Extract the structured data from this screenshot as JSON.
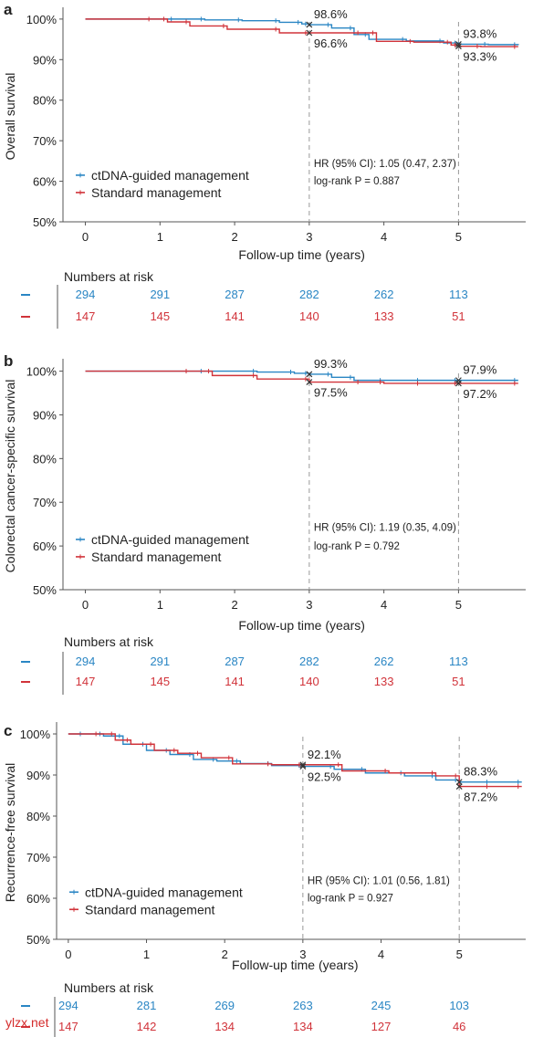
{
  "colors": {
    "ctdna": "#2a86c4",
    "standard": "#d1333a",
    "axis": "#555555",
    "annotation": "#7a7a7a",
    "text": "#222222"
  },
  "watermark": "ylzx.net",
  "chart_data": [
    {
      "panel_label": "a",
      "type": "line",
      "ylabel": "Overall survival",
      "xlabel": "Follow-up time (years)",
      "xlim": [
        -0.3,
        5.9
      ],
      "ylim": [
        50,
        102
      ],
      "xticks": [
        "0",
        "1",
        "2",
        "3",
        "4",
        "5"
      ],
      "yticks": [
        "100%",
        "90%",
        "80%",
        "70%",
        "60%",
        "50%"
      ],
      "legend_placement": "lower-left",
      "series": [
        {
          "name": "ctDNA-guided management",
          "color_key": "ctdna",
          "x": [
            0,
            1.2,
            1.6,
            2.1,
            2.6,
            2.9,
            3.0,
            3.3,
            3.6,
            3.8,
            4.3,
            4.8,
            5.0,
            5.4,
            5.8
          ],
          "y": [
            100,
            100,
            99.8,
            99.6,
            99.2,
            98.8,
            98.6,
            97.8,
            96.2,
            95.0,
            94.6,
            94.1,
            93.8,
            93.7,
            93.6
          ]
        },
        {
          "name": "Standard management",
          "color_key": "standard",
          "x": [
            0,
            0.9,
            1.1,
            1.4,
            1.9,
            2.6,
            3.0,
            3.7,
            3.9,
            4.4,
            4.9,
            5.0,
            5.3,
            5.8
          ],
          "y": [
            100,
            100,
            99.3,
            98.3,
            97.5,
            96.6,
            96.6,
            96.6,
            94.5,
            94.3,
            93.6,
            93.3,
            93.2,
            93.2
          ]
        }
      ],
      "annotations": [
        {
          "x": 3,
          "top": "98.6%",
          "bottom": "96.6%"
        },
        {
          "x": 5,
          "top": "93.8%",
          "bottom": "93.3%"
        }
      ],
      "stats": [
        "HR (95% CI): 1.05 (0.47, 2.37)",
        "log-rank P = 0.887"
      ],
      "risk_title": "Numbers at risk",
      "risk_x": [
        0,
        1,
        2,
        3,
        4,
        5
      ],
      "risk": {
        "ctdna": [
          "294",
          "291",
          "287",
          "282",
          "262",
          "113"
        ],
        "standard": [
          "147",
          "145",
          "141",
          "140",
          "133",
          "51"
        ]
      }
    },
    {
      "panel_label": "b",
      "type": "line",
      "ylabel": "Colorectal cancer-specific survival",
      "xlabel": "Follow-up time (years)",
      "xlim": [
        -0.3,
        5.9
      ],
      "ylim": [
        50,
        102
      ],
      "xticks": [
        "0",
        "1",
        "2",
        "3",
        "4",
        "5"
      ],
      "yticks": [
        "100%",
        "90%",
        "80%",
        "70%",
        "60%",
        "50%"
      ],
      "legend_placement": "lower-left",
      "series": [
        {
          "name": "ctDNA-guided management",
          "color_key": "ctdna",
          "x": [
            0,
            1.6,
            2.3,
            2.8,
            3.0,
            3.3,
            3.6,
            4.0,
            4.5,
            5.0,
            5.8
          ],
          "y": [
            100,
            100,
            99.8,
            99.5,
            99.3,
            98.6,
            97.9,
            97.9,
            97.9,
            97.9,
            97.9
          ]
        },
        {
          "name": "Standard management",
          "color_key": "standard",
          "x": [
            0,
            1.4,
            1.7,
            2.3,
            3.0,
            3.7,
            4.0,
            4.5,
            5.0,
            5.8
          ],
          "y": [
            100,
            100,
            99.0,
            98.2,
            97.5,
            97.5,
            97.2,
            97.2,
            97.2,
            97.2
          ]
        }
      ],
      "annotations": [
        {
          "x": 3,
          "top": "99.3%",
          "bottom": "97.5%"
        },
        {
          "x": 5,
          "top": "97.9%",
          "bottom": "97.2%"
        }
      ],
      "stats": [
        "HR (95% CI): 1.19 (0.35, 4.09)",
        "log-rank P = 0.792"
      ],
      "risk_title": "Numbers at risk",
      "risk_x": [
        0,
        1,
        2,
        3,
        4,
        5
      ],
      "risk": {
        "ctdna": [
          "294",
          "291",
          "287",
          "282",
          "262",
          "113"
        ],
        "standard": [
          "147",
          "145",
          "141",
          "140",
          "133",
          "51"
        ]
      }
    },
    {
      "panel_label": "c",
      "type": "line",
      "ylabel": "Recurrence-free survival",
      "xlabel": "Follow-up time (years)",
      "xlim": [
        -0.15,
        5.85
      ],
      "ylim": [
        50,
        102
      ],
      "xticks": [
        "0",
        "1",
        "2",
        "3",
        "4",
        "5"
      ],
      "yticks": [
        "100%",
        "90%",
        "80%",
        "70%",
        "60%",
        "50%"
      ],
      "legend_placement": "lower-left",
      "series": [
        {
          "name": "ctDNA-guided management",
          "color_key": "ctdna",
          "x": [
            0,
            0.2,
            0.45,
            0.7,
            1.0,
            1.3,
            1.6,
            1.9,
            2.2,
            2.6,
            3.0,
            3.4,
            3.8,
            4.3,
            4.7,
            5.0,
            5.4,
            5.8
          ],
          "y": [
            100,
            100,
            99.5,
            97.5,
            96.0,
            95.0,
            93.8,
            93.4,
            92.8,
            92.3,
            92.1,
            91.4,
            90.5,
            89.8,
            88.8,
            88.3,
            88.3,
            88.3
          ]
        },
        {
          "name": "Standard management",
          "color_key": "standard",
          "x": [
            0,
            0.4,
            0.6,
            0.8,
            1.1,
            1.4,
            1.7,
            2.1,
            2.6,
            3.0,
            3.5,
            4.1,
            4.7,
            5.0,
            5.4,
            5.8
          ],
          "y": [
            100,
            100,
            98.5,
            97.5,
            96.0,
            95.3,
            94.2,
            92.7,
            92.5,
            92.5,
            91.0,
            90.5,
            89.8,
            87.2,
            87.2,
            87.2
          ]
        }
      ],
      "annotations": [
        {
          "x": 3,
          "top": "92.1%",
          "bottom": "92.5%"
        },
        {
          "x": 5,
          "top": "88.3%",
          "bottom": "87.2%"
        }
      ],
      "stats": [
        "HR (95% CI): 1.01 (0.56, 1.81)",
        "log-rank P = 0.927"
      ],
      "risk_title": "Numbers at risk",
      "risk_x": [
        0,
        1,
        2,
        3,
        4,
        5
      ],
      "risk": {
        "ctdna": [
          "294",
          "281",
          "269",
          "263",
          "245",
          "103"
        ],
        "standard": [
          "147",
          "142",
          "134",
          "134",
          "127",
          "46"
        ]
      }
    }
  ]
}
